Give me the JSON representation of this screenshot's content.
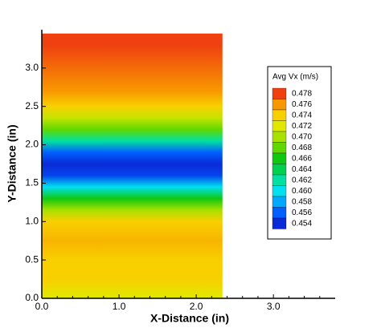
{
  "chart_data": {
    "type": "heatmap",
    "x_label": "X-Distance (in)",
    "y_label": "Y-Distance (in)",
    "x_extent": [
      0,
      2.34
    ],
    "y": [
      0.0,
      0.25,
      0.5,
      0.75,
      1.0,
      1.15,
      1.3,
      1.45,
      1.6,
      1.75,
      1.9,
      2.05,
      2.2,
      2.35,
      2.5,
      2.7,
      3.0,
      3.3,
      3.45
    ],
    "values": [
      0.472,
      0.474,
      0.474,
      0.475,
      0.474,
      0.47,
      0.466,
      0.46,
      0.455,
      0.454,
      0.456,
      0.462,
      0.468,
      0.471,
      0.474,
      0.476,
      0.477,
      0.478,
      0.478
    ],
    "xlim": [
      0,
      3.8
    ],
    "xticks": [
      {
        "value": 0,
        "label": "0.0"
      },
      {
        "value": 1,
        "label": "1.0"
      },
      {
        "value": 2,
        "label": "2.0"
      },
      {
        "value": 3,
        "label": "3.0"
      }
    ],
    "ylim": [
      0,
      3.5
    ],
    "yticks": [
      {
        "value": 0,
        "label": "0.0"
      },
      {
        "value": 0.5,
        "label": "0.5"
      },
      {
        "value": 1,
        "label": "1.0"
      },
      {
        "value": 1.5,
        "label": "1.5"
      },
      {
        "value": 2,
        "label": "2.0"
      },
      {
        "value": 2.5,
        "label": "2.5"
      },
      {
        "value": 3,
        "label": "3.0"
      }
    ],
    "colorbar": {
      "title": "Avg Vx (m/s)",
      "levels": [
        {
          "value": 0.478,
          "label": "0.478"
        },
        {
          "value": 0.476,
          "label": "0.476"
        },
        {
          "value": 0.474,
          "label": "0.474"
        },
        {
          "value": 0.472,
          "label": "0.472"
        },
        {
          "value": 0.47,
          "label": "0.470"
        },
        {
          "value": 0.468,
          "label": "0.468"
        },
        {
          "value": 0.466,
          "label": "0.466"
        },
        {
          "value": 0.464,
          "label": "0.464"
        },
        {
          "value": 0.462,
          "label": "0.462"
        },
        {
          "value": 0.46,
          "label": "0.460"
        },
        {
          "value": 0.458,
          "label": "0.458"
        },
        {
          "value": 0.456,
          "label": "0.456"
        },
        {
          "value": 0.454,
          "label": "0.454"
        }
      ],
      "colors": [
        "#f04010",
        "#f89800",
        "#f8d000",
        "#e0e800",
        "#a8e000",
        "#60d800",
        "#10c810",
        "#00d050",
        "#00e0a0",
        "#00e0f0",
        "#00a8ff",
        "#0060ff",
        "#0a2ad8"
      ]
    }
  }
}
